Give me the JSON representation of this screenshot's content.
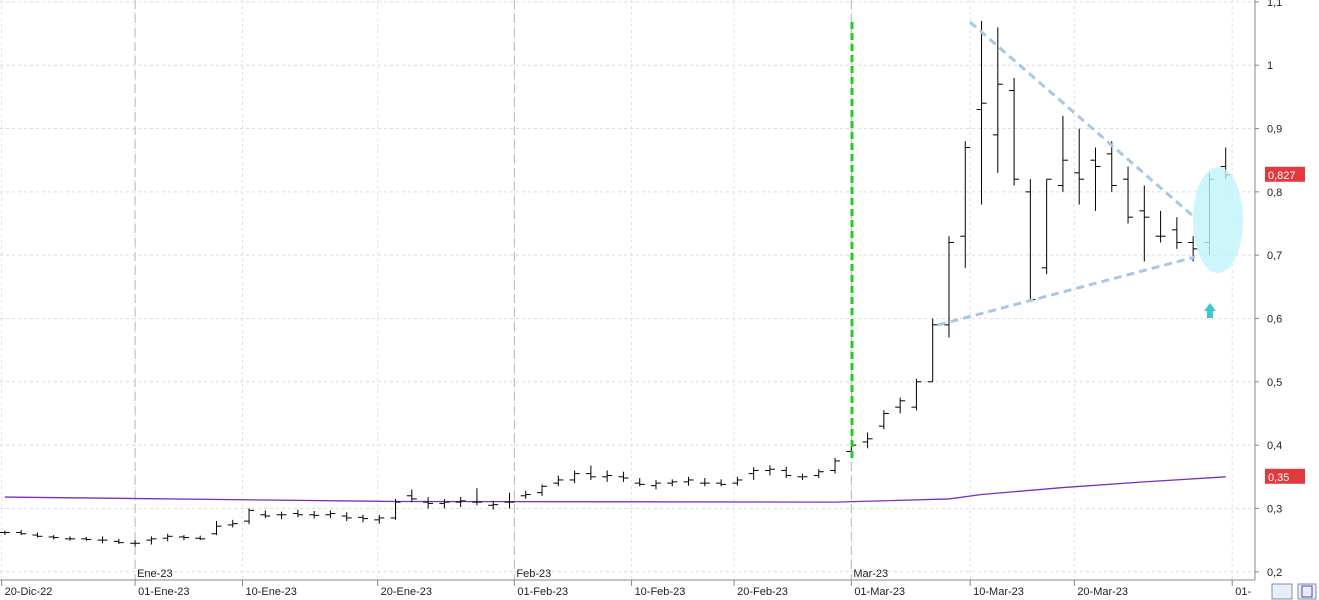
{
  "chart_data": {
    "type": "ohlc",
    "categories": [
      null,
      null,
      null,
      null,
      null,
      null,
      null,
      null,
      null,
      null,
      null,
      null,
      null,
      null,
      null,
      null,
      null,
      null,
      null,
      null,
      null,
      null,
      null,
      null,
      null,
      null,
      null,
      null,
      null,
      null,
      null,
      null,
      null,
      null,
      null,
      null,
      null,
      null,
      null,
      null,
      null,
      null,
      null,
      null,
      null,
      null,
      null,
      null,
      null,
      null,
      null,
      null,
      null,
      null,
      null,
      null,
      null,
      null,
      null,
      null,
      null,
      null,
      null,
      null,
      null,
      null,
      null,
      null,
      null,
      null,
      null,
      null,
      null,
      null,
      null,
      null
    ],
    "open": [
      0.262,
      0.262,
      0.258,
      0.255,
      0.252,
      0.252,
      0.25,
      0.248,
      0.245,
      0.25,
      0.253,
      0.255,
      0.253,
      0.26,
      0.274,
      0.28,
      0.29,
      0.29,
      0.292,
      0.29,
      0.29,
      0.288,
      0.286,
      0.282,
      0.285,
      0.32,
      0.31,
      0.308,
      0.31,
      0.31,
      0.305,
      0.31,
      0.32,
      0.325,
      0.34,
      0.345,
      0.355,
      0.35,
      0.35,
      0.34,
      0.336,
      0.34,
      0.342,
      0.34,
      0.34,
      0.34,
      0.355,
      0.36,
      0.36,
      0.35,
      0.352,
      0.36,
      0.39,
      0.405,
      0.43,
      0.46,
      0.46,
      0.5,
      0.59,
      0.73,
      0.93,
      0.89,
      0.96,
      0.8,
      0.68,
      0.81,
      0.83,
      0.85,
      0.86,
      0.82,
      0.77,
      0.73,
      0.74,
      0.72,
      0.72,
      0.84
    ],
    "high": [
      0.265,
      0.266,
      0.262,
      0.258,
      0.256,
      0.255,
      0.256,
      0.252,
      0.25,
      0.256,
      0.26,
      0.258,
      0.257,
      0.28,
      0.282,
      0.3,
      0.297,
      0.295,
      0.298,
      0.296,
      0.297,
      0.294,
      0.29,
      0.29,
      0.315,
      0.33,
      0.318,
      0.315,
      0.318,
      0.332,
      0.312,
      0.325,
      0.328,
      0.338,
      0.352,
      0.36,
      0.368,
      0.36,
      0.358,
      0.348,
      0.345,
      0.346,
      0.35,
      0.348,
      0.346,
      0.35,
      0.365,
      0.368,
      0.366,
      0.355,
      0.362,
      0.38,
      0.405,
      0.42,
      0.455,
      0.475,
      0.505,
      0.6,
      0.73,
      0.88,
      1.07,
      1.06,
      0.98,
      0.82,
      0.82,
      0.92,
      0.9,
      0.87,
      0.88,
      0.84,
      0.81,
      0.77,
      0.76,
      0.73,
      0.83,
      0.87
    ],
    "low": [
      0.258,
      0.258,
      0.254,
      0.251,
      0.249,
      0.249,
      0.245,
      0.244,
      0.24,
      0.243,
      0.248,
      0.25,
      0.25,
      0.258,
      0.27,
      0.275,
      0.285,
      0.283,
      0.286,
      0.284,
      0.285,
      0.28,
      0.278,
      0.276,
      0.282,
      0.31,
      0.3,
      0.3,
      0.302,
      0.305,
      0.298,
      0.3,
      0.315,
      0.32,
      0.335,
      0.34,
      0.345,
      0.342,
      0.342,
      0.335,
      0.33,
      0.335,
      0.336,
      0.335,
      0.335,
      0.336,
      0.345,
      0.352,
      0.348,
      0.345,
      0.348,
      0.355,
      0.38,
      0.395,
      0.425,
      0.45,
      0.455,
      0.5,
      0.57,
      0.68,
      0.78,
      0.83,
      0.81,
      0.63,
      0.67,
      0.8,
      0.78,
      0.77,
      0.8,
      0.75,
      0.69,
      0.72,
      0.71,
      0.69,
      0.7,
      0.82
    ],
    "close": [
      0.262,
      0.26,
      0.256,
      0.254,
      0.252,
      0.251,
      0.25,
      0.246,
      0.245,
      0.252,
      0.256,
      0.254,
      0.252,
      0.272,
      0.276,
      0.297,
      0.288,
      0.29,
      0.29,
      0.289,
      0.292,
      0.285,
      0.284,
      0.285,
      0.31,
      0.315,
      0.308,
      0.31,
      0.312,
      0.31,
      0.306,
      0.31,
      0.322,
      0.335,
      0.345,
      0.355,
      0.35,
      0.352,
      0.348,
      0.338,
      0.34,
      0.342,
      0.345,
      0.34,
      0.338,
      0.345,
      0.36,
      0.362,
      0.352,
      0.35,
      0.358,
      0.375,
      0.4,
      0.41,
      0.45,
      0.47,
      0.5,
      0.59,
      0.72,
      0.87,
      0.94,
      0.97,
      0.82,
      0.63,
      0.82,
      0.85,
      0.82,
      0.84,
      0.81,
      0.76,
      0.76,
      0.73,
      0.72,
      0.71,
      0.82,
      0.827
    ],
    "bar_color": "#000000",
    "line_series": [
      {
        "color": "#7b2fbf",
        "x": [
          0,
          24,
          51,
          58,
          60,
          65,
          70,
          75
        ],
        "values": [
          0.318,
          0.311,
          0.31,
          0.315,
          0.322,
          0.333,
          0.342,
          0.35
        ]
      }
    ],
    "xlim": [
      -0.3,
      76.8
    ],
    "ylim": [
      0.187,
      1.103
    ],
    "yticks": [
      {
        "value": 0.2,
        "label": "0,2"
      },
      {
        "value": 0.3,
        "label": "0,3"
      },
      {
        "value": 0.4,
        "label": "0,4"
      },
      {
        "value": 0.5,
        "label": "0,5"
      },
      {
        "value": 0.6,
        "label": "0,6"
      },
      {
        "value": 0.7,
        "label": "0,7"
      },
      {
        "value": 0.8,
        "label": "0,8"
      },
      {
        "value": 0.9,
        "label": "0,9"
      },
      1,
      {
        "value": 1.1,
        "label": "1,1"
      }
    ],
    "xticks": [
      {
        "value": -0.2,
        "label": "20-Dic-22"
      },
      {
        "value": 8.0,
        "label": "01-Ene-23"
      },
      {
        "value": 14.6,
        "label": "10-Ene-23"
      },
      {
        "value": 22.9,
        "label": "20-Ene-23"
      },
      {
        "value": 31.3,
        "label": "01-Feb-23"
      },
      {
        "value": 38.5,
        "label": "10-Feb-23"
      },
      {
        "value": 44.8,
        "label": "20-Feb-23"
      },
      {
        "value": 52.0,
        "label": "01-Mar-23"
      },
      {
        "value": 59.3,
        "label": "10-Mar-23"
      },
      {
        "value": 65.7,
        "label": "20-Mar-23"
      },
      {
        "value": 75.4,
        "label": "01-"
      }
    ],
    "month_ticks": [
      {
        "value": 8.0,
        "label": "Ene-23"
      },
      {
        "value": 31.3,
        "label": "Feb-23"
      },
      {
        "value": 52.0,
        "label": "Mar-23"
      }
    ],
    "price_labels": [
      {
        "value": 0.827,
        "label": "0,827",
        "color": "#e0393e"
      },
      {
        "value": 0.35,
        "label": "0,35",
        "color": "#e0393e"
      }
    ],
    "grid": true
  }
}
